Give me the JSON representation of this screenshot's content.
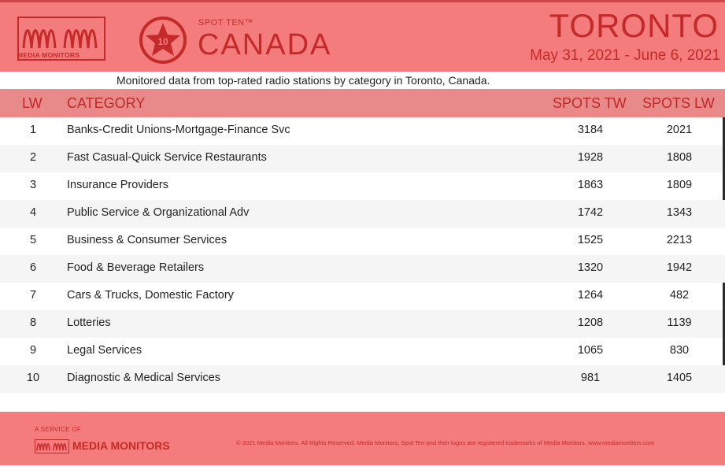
{
  "header": {
    "logo_text": "MEDIA MONITORS",
    "badge_number": "10",
    "spot_ten": "SPOT TEN™",
    "country": "CANADA",
    "city": "TORONTO",
    "date_range": "May 31, 2021 - June 6, 2021"
  },
  "subtitle": "Monitored data from top-rated radio stations by category in Toronto, Canada.",
  "table": {
    "columns": [
      "LW",
      "CATEGORY",
      "SPOTS TW",
      "SPOTS LW"
    ],
    "rows": [
      {
        "lw": "1",
        "category": "Banks-Credit Unions-Mortgage-Finance Svc",
        "spots_tw": "3184",
        "spots_lw": "2021"
      },
      {
        "lw": "2",
        "category": "Fast Casual-Quick Service Restaurants",
        "spots_tw": "1928",
        "spots_lw": "1808"
      },
      {
        "lw": "3",
        "category": "Insurance Providers",
        "spots_tw": "1863",
        "spots_lw": "1809"
      },
      {
        "lw": "4",
        "category": "Public Service & Organizational Adv",
        "spots_tw": "1742",
        "spots_lw": "1343"
      },
      {
        "lw": "5",
        "category": "Business & Consumer Services",
        "spots_tw": "1525",
        "spots_lw": "2213"
      },
      {
        "lw": "6",
        "category": "Food & Beverage Retailers",
        "spots_tw": "1320",
        "spots_lw": "1942"
      },
      {
        "lw": "7",
        "category": "Cars & Trucks, Domestic Factory",
        "spots_tw": "1264",
        "spots_lw": "482"
      },
      {
        "lw": "8",
        "category": "Lotteries",
        "spots_tw": "1208",
        "spots_lw": "1139"
      },
      {
        "lw": "9",
        "category": "Legal Services",
        "spots_tw": "1065",
        "spots_lw": "830"
      },
      {
        "lw": "10",
        "category": "Diagnostic & Medical Services",
        "spots_tw": "981",
        "spots_lw": "1405"
      }
    ]
  },
  "footer": {
    "service_of": "A SERVICE OF",
    "brand": "MEDIA MONITORS",
    "copyright": "© 2021 Media Monitors. All Rights Reserved. Media Monitors, Spot Ten and their logos are registered trademarks of Media Monitors. www.mediamonitors.com"
  },
  "colors": {
    "header_bg": "#f47c7c",
    "accent": "#c52a2a",
    "table_header_bg": "#e88a8a"
  },
  "icons": [
    "media-monitors-logo",
    "star-badge-icon"
  ]
}
